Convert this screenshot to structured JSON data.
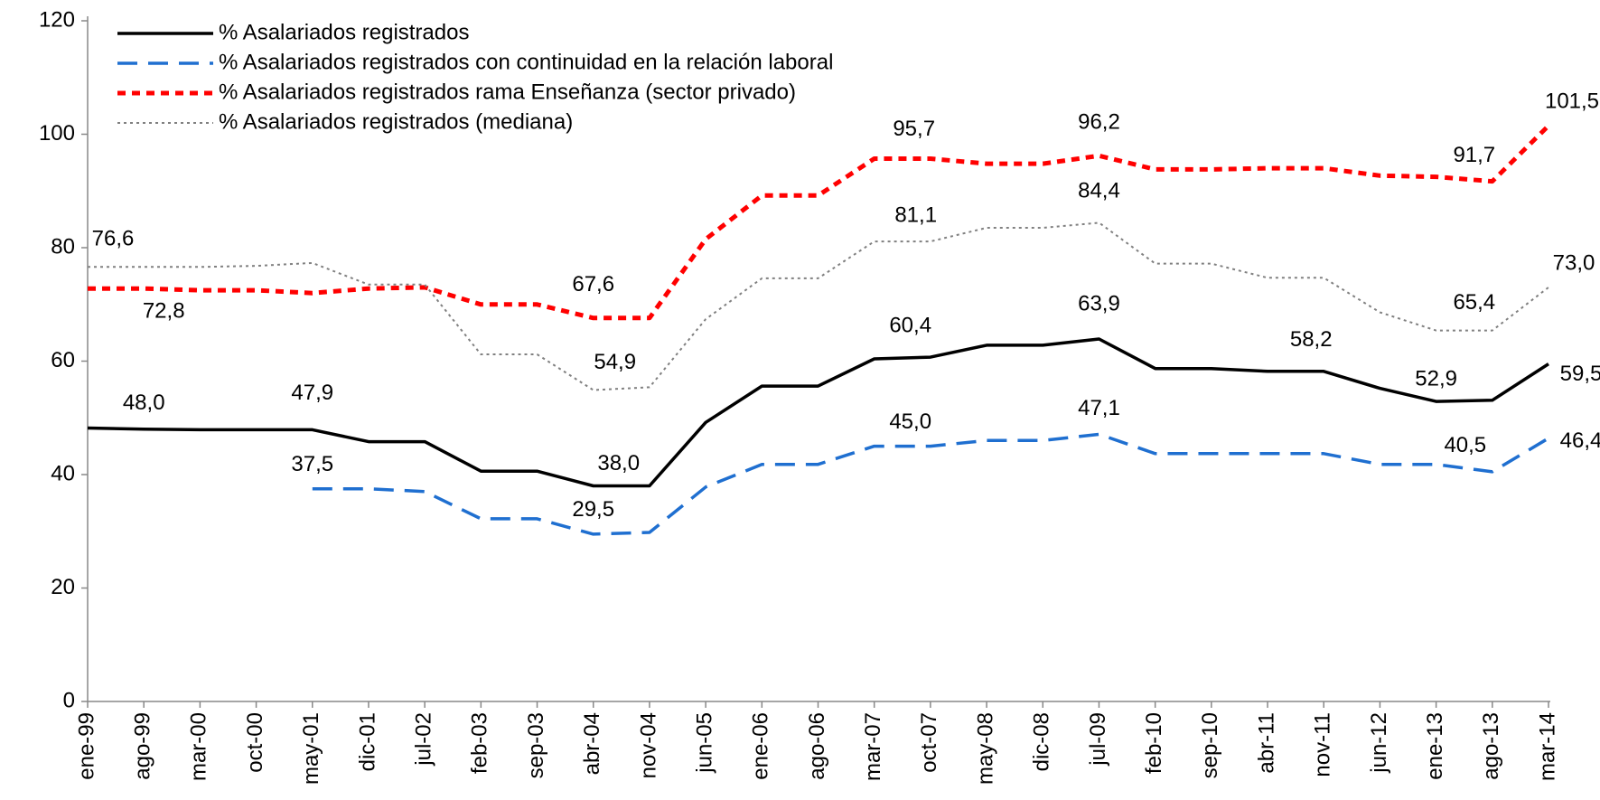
{
  "chart_data": {
    "type": "line",
    "categories": [
      "ene-99",
      "ago-99",
      "mar-00",
      "oct-00",
      "may-01",
      "dic-01",
      "jul-02",
      "feb-03",
      "sep-03",
      "abr-04",
      "nov-04",
      "jun-05",
      "ene-06",
      "ago-06",
      "mar-07",
      "oct-07",
      "may-08",
      "dic-08",
      "jul-09",
      "feb-10",
      "sep-10",
      "abr-11",
      "nov-11",
      "jun-12",
      "ene-13",
      "ago-13",
      "mar-14"
    ],
    "ylim": [
      0,
      120
    ],
    "yticks": [
      0,
      20,
      40,
      60,
      80,
      100,
      120
    ],
    "legend": "top-left",
    "series": [
      {
        "name": "% Asalariados registrados",
        "color": "#000000",
        "line_style": "solid",
        "values": [
          48.2,
          48.0,
          47.9,
          47.9,
          47.9,
          45.8,
          45.8,
          40.6,
          40.6,
          38.0,
          38.0,
          49.2,
          55.6,
          55.6,
          60.4,
          60.7,
          62.8,
          62.8,
          63.9,
          58.7,
          58.7,
          58.2,
          58.2,
          55.2,
          52.9,
          53.1,
          59.5
        ],
        "value_labels": [
          null,
          "48,0",
          null,
          null,
          "47,9",
          null,
          null,
          null,
          null,
          "38,0",
          null,
          null,
          null,
          null,
          "60,4",
          null,
          null,
          null,
          "63,9",
          null,
          null,
          null,
          "58,2",
          null,
          "52,9",
          null,
          "59,5"
        ]
      },
      {
        "name": "% Asalariados registrados con continuidad en la relación laboral",
        "color": "#1f6fd0",
        "line_style": "dashed",
        "values": [
          null,
          null,
          null,
          null,
          37.5,
          37.5,
          37.0,
          32.2,
          32.2,
          29.5,
          29.8,
          37.8,
          41.8,
          41.8,
          45.0,
          45.0,
          46.0,
          46.0,
          47.1,
          43.7,
          43.7,
          43.7,
          43.7,
          41.8,
          41.8,
          40.5,
          46.4
        ],
        "value_labels": [
          null,
          null,
          null,
          null,
          "37,5",
          null,
          null,
          null,
          null,
          "29,5",
          null,
          null,
          null,
          null,
          "45,0",
          null,
          null,
          null,
          "47,1",
          null,
          null,
          null,
          null,
          null,
          null,
          "40,5",
          "46,4"
        ]
      },
      {
        "name": "% Asalariados registrados rama Enseñanza (sector privado)",
        "color": "#ff0000",
        "line_style": "dotted",
        "values": [
          72.8,
          72.8,
          72.5,
          72.5,
          72.0,
          72.8,
          73.0,
          70.0,
          70.0,
          67.6,
          67.6,
          81.5,
          89.2,
          89.2,
          95.7,
          95.7,
          94.8,
          94.8,
          96.2,
          93.8,
          93.8,
          94.0,
          94.0,
          92.7,
          92.5,
          91.7,
          101.5
        ],
        "value_labels": [
          null,
          "72,8",
          null,
          null,
          null,
          null,
          null,
          null,
          null,
          "67,6",
          null,
          null,
          null,
          null,
          "95,7",
          null,
          null,
          null,
          "96,2",
          null,
          null,
          null,
          null,
          null,
          null,
          "91,7",
          "101,5"
        ]
      },
      {
        "name": "% Asalariados registrados (mediana)",
        "color": "#808080",
        "line_style": "fine-dotted",
        "values": [
          76.6,
          76.6,
          76.6,
          76.8,
          77.3,
          73.5,
          73.5,
          61.2,
          61.2,
          54.9,
          55.4,
          67.4,
          74.6,
          74.6,
          81.1,
          81.1,
          83.5,
          83.5,
          84.4,
          77.2,
          77.2,
          74.7,
          74.7,
          68.6,
          65.4,
          65.4,
          73.0
        ],
        "value_labels": [
          "76,6",
          null,
          null,
          null,
          null,
          null,
          null,
          null,
          null,
          "54,9",
          null,
          null,
          null,
          null,
          "81,1",
          null,
          null,
          null,
          "84,4",
          null,
          null,
          null,
          null,
          null,
          null,
          "65,4",
          "73,0"
        ]
      }
    ]
  }
}
